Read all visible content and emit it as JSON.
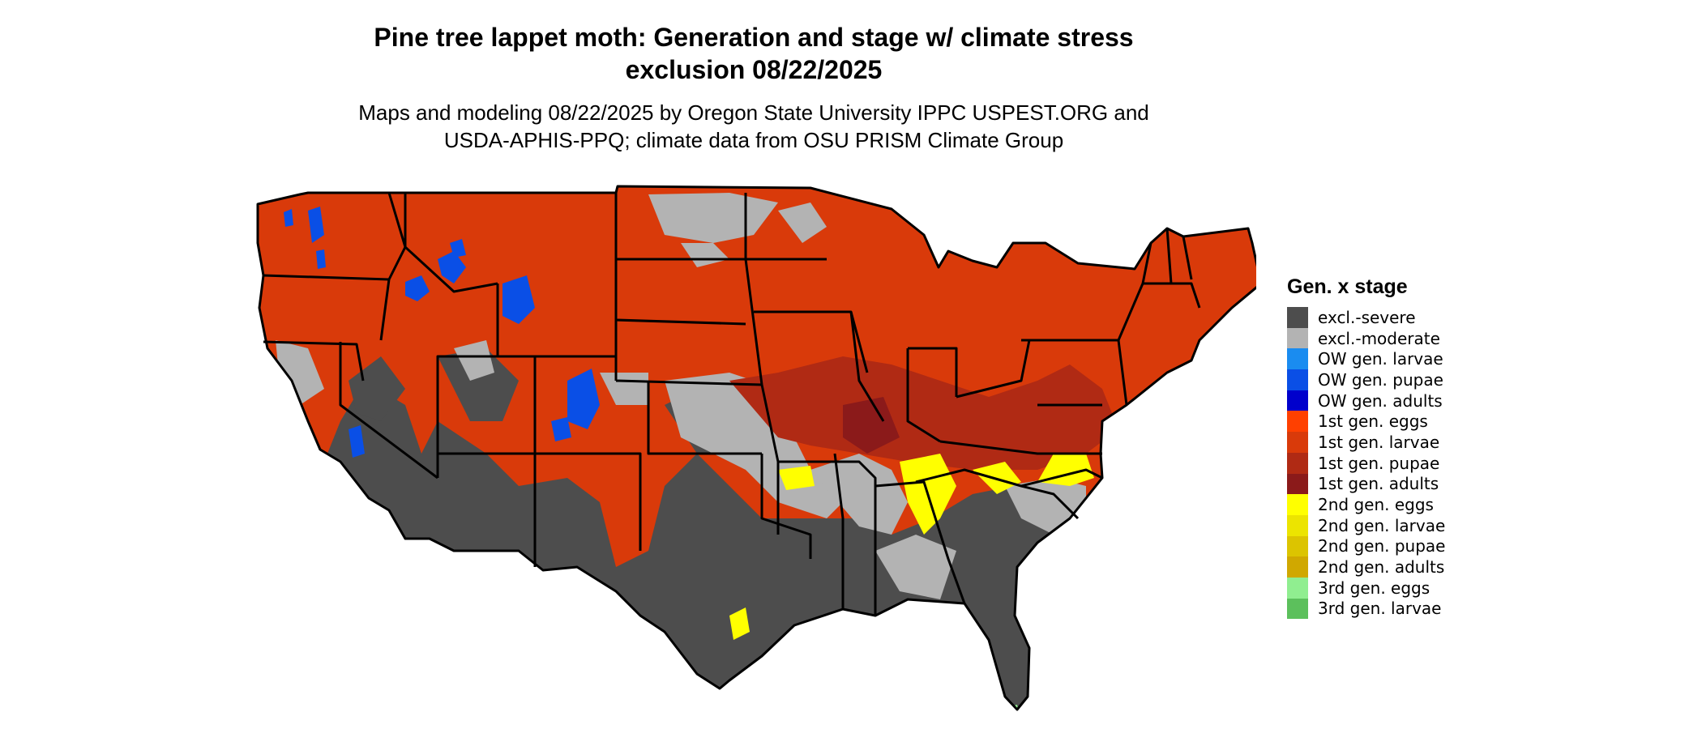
{
  "title": {
    "line1": "Pine tree lappet moth: Generation and stage w/ climate stress",
    "line2": "exclusion 08/22/2025"
  },
  "subtitle": {
    "line1": "Maps and modeling 08/22/2025 by Oregon State University IPPC USPEST.ORG and",
    "line2": "USDA-APHIS-PPQ; climate data from OSU PRISM Climate Group"
  },
  "legend": {
    "title": "Gen. x stage",
    "items": [
      {
        "label": "excl.-severe",
        "color": "#4d4d4d"
      },
      {
        "label": "excl.-moderate",
        "color": "#b3b3b3"
      },
      {
        "label": "OW gen. larvae",
        "color": "#1a8cf0"
      },
      {
        "label": "OW gen. pupae",
        "color": "#0a4fe6"
      },
      {
        "label": "OW gen. adults",
        "color": "#0000cc"
      },
      {
        "label": "1st gen. eggs",
        "color": "#ff4000"
      },
      {
        "label": "1st gen. larvae",
        "color": "#d93a0a"
      },
      {
        "label": "1st gen. pupae",
        "color": "#b02a14"
      },
      {
        "label": "1st gen. adults",
        "color": "#8b1a1a"
      },
      {
        "label": "2nd gen. eggs",
        "color": "#ffff00"
      },
      {
        "label": "2nd gen. larvae",
        "color": "#ece400"
      },
      {
        "label": "2nd gen. pupae",
        "color": "#dcc400"
      },
      {
        "label": "2nd gen. adults",
        "color": "#d0a800"
      },
      {
        "label": "3rd gen. eggs",
        "color": "#90ee90"
      },
      {
        "label": "3rd gen. larvae",
        "color": "#5cc05c"
      }
    ]
  }
}
